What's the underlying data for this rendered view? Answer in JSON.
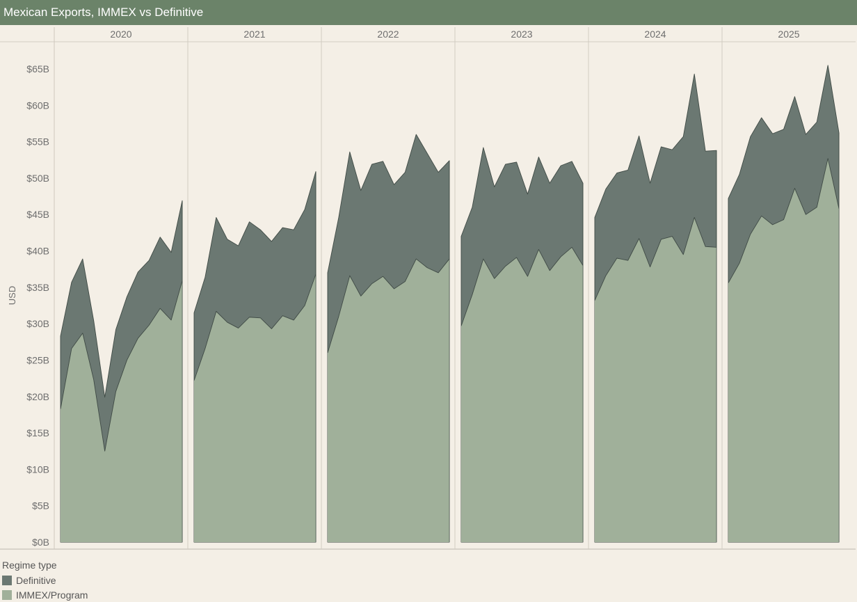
{
  "title": "Mexican Exports, IMMEX vs Definitive",
  "chart_data": {
    "type": "area",
    "stacked": true,
    "ylabel": "USD",
    "xlabel": "",
    "ylim": [
      0,
      68
    ],
    "yticks": [
      0,
      5,
      10,
      15,
      20,
      25,
      30,
      35,
      40,
      45,
      50,
      55,
      60,
      65
    ],
    "ytick_labels": [
      "$0B",
      "$5B",
      "$10B",
      "$15B",
      "$20B",
      "$25B",
      "$30B",
      "$35B",
      "$40B",
      "$45B",
      "$50B",
      "$55B",
      "$60B",
      "$65B"
    ],
    "grid": false,
    "legend": {
      "title": "Regime type",
      "placement": "bottom-left",
      "entries": [
        {
          "name": "Definitive",
          "color": "#6b7872"
        },
        {
          "name": "IMMEX/Program",
          "color": "#a0b09a"
        }
      ]
    },
    "panels": [
      {
        "year": "2020",
        "immex": [
          18.3,
          26.6,
          28.7,
          22.3,
          12.5,
          20.7,
          25.0,
          28.0,
          29.8,
          32.1,
          30.5,
          35.9
        ],
        "total": [
          28.3,
          35.7,
          38.9,
          30.4,
          19.9,
          29.2,
          33.7,
          37.1,
          38.7,
          41.9,
          39.8,
          46.9
        ]
      },
      {
        "year": "2021",
        "immex": [
          22.2,
          26.6,
          31.7,
          30.2,
          29.4,
          30.9,
          30.8,
          29.3,
          31.1,
          30.5,
          32.5,
          36.8
        ],
        "total": [
          31.5,
          36.4,
          44.6,
          41.6,
          40.7,
          44.0,
          42.9,
          41.3,
          43.2,
          42.9,
          45.7,
          50.9
        ]
      },
      {
        "year": "2022",
        "immex": [
          26.0,
          31.0,
          36.6,
          33.8,
          35.5,
          36.5,
          34.8,
          35.8,
          38.9,
          37.7,
          37.0,
          38.9
        ],
        "total": [
          37.0,
          44.6,
          53.6,
          48.3,
          51.9,
          52.3,
          49.1,
          50.8,
          56.0,
          53.4,
          50.8,
          52.4
        ]
      },
      {
        "year": "2023",
        "immex": [
          29.7,
          34.0,
          38.9,
          36.2,
          37.9,
          39.1,
          36.5,
          40.2,
          37.3,
          39.2,
          40.5,
          38.0
        ],
        "total": [
          42.0,
          46.0,
          54.2,
          48.8,
          51.9,
          52.2,
          47.8,
          52.9,
          49.3,
          51.7,
          52.3,
          49.3
        ]
      },
      {
        "year": "2024",
        "immex": [
          33.2,
          36.6,
          39.0,
          38.7,
          41.7,
          37.8,
          41.6,
          42.0,
          39.5,
          44.6,
          40.6,
          40.5
        ],
        "total": [
          44.6,
          48.5,
          50.7,
          51.1,
          55.8,
          49.3,
          54.3,
          53.9,
          55.7,
          64.3,
          53.7,
          53.8
        ]
      },
      {
        "year": "2025",
        "immex": [
          35.6,
          38.3,
          42.3,
          44.8,
          43.6,
          44.3,
          48.6,
          45.0,
          46.0,
          52.7,
          45.8
        ],
        "total": [
          47.2,
          50.5,
          55.7,
          58.3,
          56.1,
          56.7,
          61.2,
          56.0,
          57.7,
          65.5,
          56.2
        ]
      }
    ]
  }
}
